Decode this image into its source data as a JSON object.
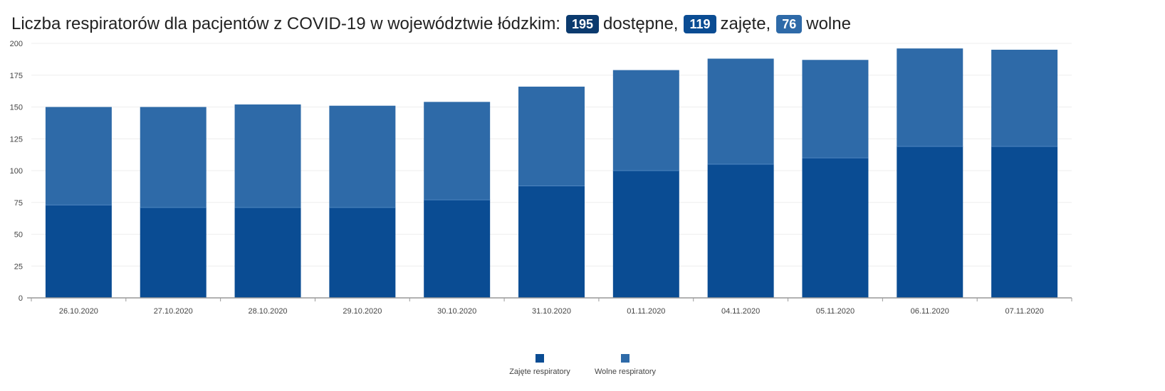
{
  "header": {
    "title_text": "Liczba respiratorów dla pacjentów z COVID-19 w województwie łódzkim:",
    "available_value": "195",
    "available_label": "dostępne,",
    "occupied_value": "119",
    "occupied_label": "zajęte,",
    "free_value": "76",
    "free_label": "wolne"
  },
  "colors": {
    "occupied": "#0a4c93",
    "free": "#2e6aa8",
    "badge_available": "#0b3a6e"
  },
  "chart_data": {
    "type": "bar",
    "stacked": true,
    "categories": [
      "26.10.2020",
      "27.10.2020",
      "28.10.2020",
      "29.10.2020",
      "30.10.2020",
      "31.10.2020",
      "01.11.2020",
      "04.11.2020",
      "05.11.2020",
      "06.11.2020",
      "07.11.2020"
    ],
    "series": [
      {
        "name": "Zajęte respiratory",
        "color": "#0a4c93",
        "values": [
          73,
          71,
          71,
          71,
          77,
          88,
          100,
          105,
          110,
          119,
          119
        ]
      },
      {
        "name": "Wolne respiratory",
        "color": "#2e6aa8",
        "values": [
          77,
          79,
          81,
          80,
          77,
          78,
          79,
          83,
          77,
          77,
          76
        ]
      }
    ],
    "ylim": [
      0,
      200
    ],
    "yticks": [
      0,
      25,
      50,
      75,
      100,
      125,
      150,
      175,
      200
    ],
    "grid": true,
    "legend_position": "bottom-center"
  }
}
